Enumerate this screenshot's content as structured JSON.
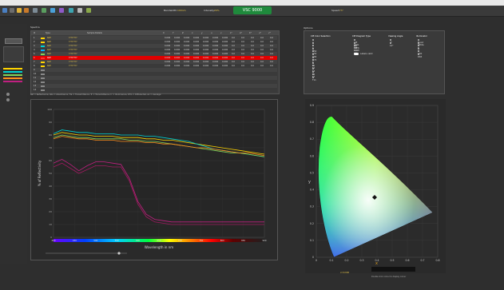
{
  "app": {
    "brand": "VSC 9000"
  },
  "toolbar": {
    "bandwidth_label": "Bandwidth:",
    "bandwidth_value": "100nm",
    "intensity_label": "Intensity:",
    "intensity_value": "29%",
    "speed_label": "Speed:",
    "speed_value": "???",
    "icons": [
      "home-icon",
      "print-icon",
      "folder-icon",
      "save-icon",
      "camera-icon",
      "settings-icon",
      "chart-icon",
      "refresh-icon",
      "color-icon",
      "grid-icon",
      "help-icon"
    ]
  },
  "table": {
    "title": "Spectra",
    "columns": [
      "#",
      "Type",
      "Sample Details",
      "X",
      "Y",
      "Z",
      "x",
      "y",
      "u",
      "v",
      "L*",
      "a*",
      "b*",
      "u*",
      "v*"
    ],
    "rows": [
      {
        "id": "1",
        "type": "Refl",
        "details": "????????",
        "vals": [
          "0.000",
          "0.000",
          "0.000",
          "0.000",
          "0.000",
          "0.000",
          "0.000",
          "0.0",
          "0.0",
          "0.0",
          "0.0",
          "0.0"
        ],
        "color": "#ffd400"
      },
      {
        "id": "2",
        "type": "Refl",
        "details": "????????",
        "vals": [
          "0.000",
          "0.000",
          "0.000",
          "0.000",
          "0.000",
          "0.000",
          "0.000",
          "0.0",
          "0.0",
          "0.0",
          "0.0",
          "0.0"
        ],
        "color": "#ffd400"
      },
      {
        "id": "3",
        "type": "Refl",
        "details": "????????",
        "vals": [
          "0.000",
          "0.000",
          "0.000",
          "0.000",
          "0.000",
          "0.000",
          "0.000",
          "0.0",
          "0.0",
          "0.0",
          "0.0",
          "0.0"
        ],
        "color": "#00d0d0"
      },
      {
        "id": "4",
        "type": "Refl",
        "details": "????????",
        "vals": [
          "0.000",
          "0.000",
          "0.000",
          "0.000",
          "0.000",
          "0.000",
          "0.000",
          "0.0",
          "0.0",
          "0.0",
          "0.0",
          "0.0"
        ],
        "color": "#00b0ff"
      },
      {
        "id": "5",
        "type": "Refl",
        "details": "????????",
        "vals": [
          "0.000",
          "0.000",
          "0.000",
          "0.000",
          "0.000",
          "0.000",
          "0.000",
          "0.0",
          "0.0",
          "0.0",
          "0.0",
          "0.0"
        ],
        "color": "#7fd35a"
      },
      {
        "id": "6",
        "type": "Refl",
        "details": "????????",
        "vals": [
          "0.000",
          "0.000",
          "0.000",
          "0.000",
          "0.000",
          "0.000",
          "0.000",
          "0.0",
          "0.0",
          "0.0",
          "0.0",
          "0.0"
        ],
        "color": "#ff3030",
        "selected": true
      },
      {
        "id": "7",
        "type": "Refl",
        "details": "????????",
        "vals": [
          "0.000",
          "0.000",
          "0.000",
          "0.000",
          "0.000",
          "0.000",
          "0.000",
          "0.0",
          "0.0",
          "0.0",
          "0.0",
          "0.0"
        ],
        "color": "#ffd400"
      },
      {
        "id": "8",
        "type": "Refl",
        "details": "????????",
        "vals": [
          "0.000",
          "0.000",
          "0.000",
          "0.000",
          "0.000",
          "0.000",
          "0.000",
          "0.0",
          "0.0",
          "0.0",
          "0.0",
          "0.0"
        ],
        "color": "#ffd400"
      },
      {
        "id": "9",
        "type": "",
        "details": "",
        "vals": [],
        "color": "#888"
      },
      {
        "id": "10",
        "type": "",
        "details": "",
        "vals": [],
        "color": "#888"
      },
      {
        "id": "11",
        "type": "",
        "details": "",
        "vals": [],
        "color": "#888"
      },
      {
        "id": "12",
        "type": "",
        "details": "",
        "vals": [],
        "color": "#888"
      },
      {
        "id": "13",
        "type": "",
        "details": "",
        "vals": [],
        "color": "#888"
      },
      {
        "id": "14",
        "type": "",
        "details": "",
        "vals": [],
        "color": "#888"
      }
    ]
  },
  "legend_text": "Ref = Reflectance, Abs = Absorbance, Tra = Transmittance, Tr = Transmittance, Ir = Illuminance, Dfm = Differential, Av = Average",
  "options": {
    "title": "Options",
    "col1": {
      "title": "CIE Color Selection",
      "items": [
        "A",
        "B",
        "C",
        "D50",
        "D55",
        "D65",
        "D75",
        "E",
        "F1",
        "F2",
        "F3",
        "F4",
        "F7",
        "F11"
      ]
    },
    "col2": {
      "title": "CIE Diagram Type",
      "items": [
        "CIE 1931 x,y",
        "CIE 1976 u',v'",
        "CIE 1960 u,v"
      ],
      "toggle_label": "Labels valid"
    },
    "col3": {
      "title": "Viewing Angle",
      "items": [
        "2°",
        "10°"
      ]
    },
    "col4": {
      "title": "Illuminator",
      "items": [
        "Flood White",
        "A",
        "B",
        "C",
        "D50",
        "D65"
      ]
    }
  },
  "spectral": {
    "ylabel": "% of Reflectivity",
    "xlabel": "Wavelength in nm",
    "y_ticks": [
      "100",
      "90",
      "80",
      "70",
      "60",
      "50",
      "40",
      "30",
      "20",
      "10",
      "0"
    ],
    "x_ticks": [
      "400",
      "450",
      "500",
      "550",
      "600",
      "650",
      "700",
      "750",
      "800",
      "850",
      "900"
    ],
    "left_label_top": "Zoom",
    "left_label_bottom": "Shrink",
    "bottom_label": "Zoom"
  },
  "cie": {
    "xlabel": "x",
    "ylabel": "y",
    "x_ticks": [
      "0",
      "0.1",
      "0.2",
      "0.3",
      "0.4",
      "0.5",
      "0.6",
      "0.7",
      "0.8"
    ],
    "y_ticks": [
      "0.9",
      "0.8",
      "0.7",
      "0.6",
      "0.5",
      "0.4",
      "0.3",
      "0.2",
      "0.1",
      "0"
    ],
    "footer": "Double click colour to display colour",
    "readout_label": "x=0.000"
  },
  "chart_data": {
    "type": "line",
    "x": [
      400,
      420,
      440,
      460,
      480,
      500,
      520,
      540,
      560,
      580,
      600,
      620,
      640,
      660,
      680,
      700,
      720,
      740,
      760,
      780,
      800,
      820,
      840,
      860,
      880,
      900
    ],
    "xlabel": "Wavelength in nm",
    "ylabel": "% of Reflectivity",
    "ylim": [
      0,
      100
    ],
    "series": [
      {
        "color": "#ffd400",
        "values": [
          80,
          82,
          81,
          80,
          80,
          79,
          79,
          79,
          78,
          78,
          78,
          77,
          77,
          76,
          76,
          75,
          74,
          73,
          72,
          71,
          70,
          69,
          68,
          67,
          66,
          65
        ]
      },
      {
        "color": "#00d0d0",
        "values": [
          81,
          84,
          83,
          82,
          82,
          81,
          81,
          81,
          80,
          80,
          80,
          79,
          79,
          78,
          77,
          76,
          75,
          73,
          71,
          69,
          68,
          67,
          66,
          65,
          64,
          63
        ]
      },
      {
        "color": "#7fd35a",
        "values": [
          78,
          80,
          79,
          78,
          78,
          77,
          77,
          77,
          77,
          76,
          76,
          75,
          75,
          74,
          73,
          72,
          71,
          70,
          69,
          68,
          67,
          66,
          66,
          65,
          64,
          63
        ]
      },
      {
        "color": "#ff8c1a",
        "values": [
          77,
          79,
          78,
          77,
          77,
          76,
          76,
          76,
          75,
          75,
          75,
          74,
          74,
          73,
          73,
          72,
          71,
          70,
          70,
          69,
          68,
          67,
          66,
          66,
          65,
          64
        ]
      },
      {
        "color": "#c02080",
        "values": [
          58,
          61,
          57,
          52,
          56,
          59,
          59,
          58,
          57,
          46,
          28,
          18,
          14,
          13,
          12,
          12,
          12,
          12,
          12,
          12,
          12,
          12,
          12,
          12,
          12,
          12
        ]
      },
      {
        "color": "#a01a60",
        "values": [
          55,
          58,
          54,
          50,
          53,
          56,
          56,
          55,
          55,
          44,
          26,
          16,
          12,
          11,
          10,
          10,
          10,
          10,
          10,
          10,
          10,
          10,
          10,
          10,
          10,
          10
        ]
      }
    ]
  }
}
